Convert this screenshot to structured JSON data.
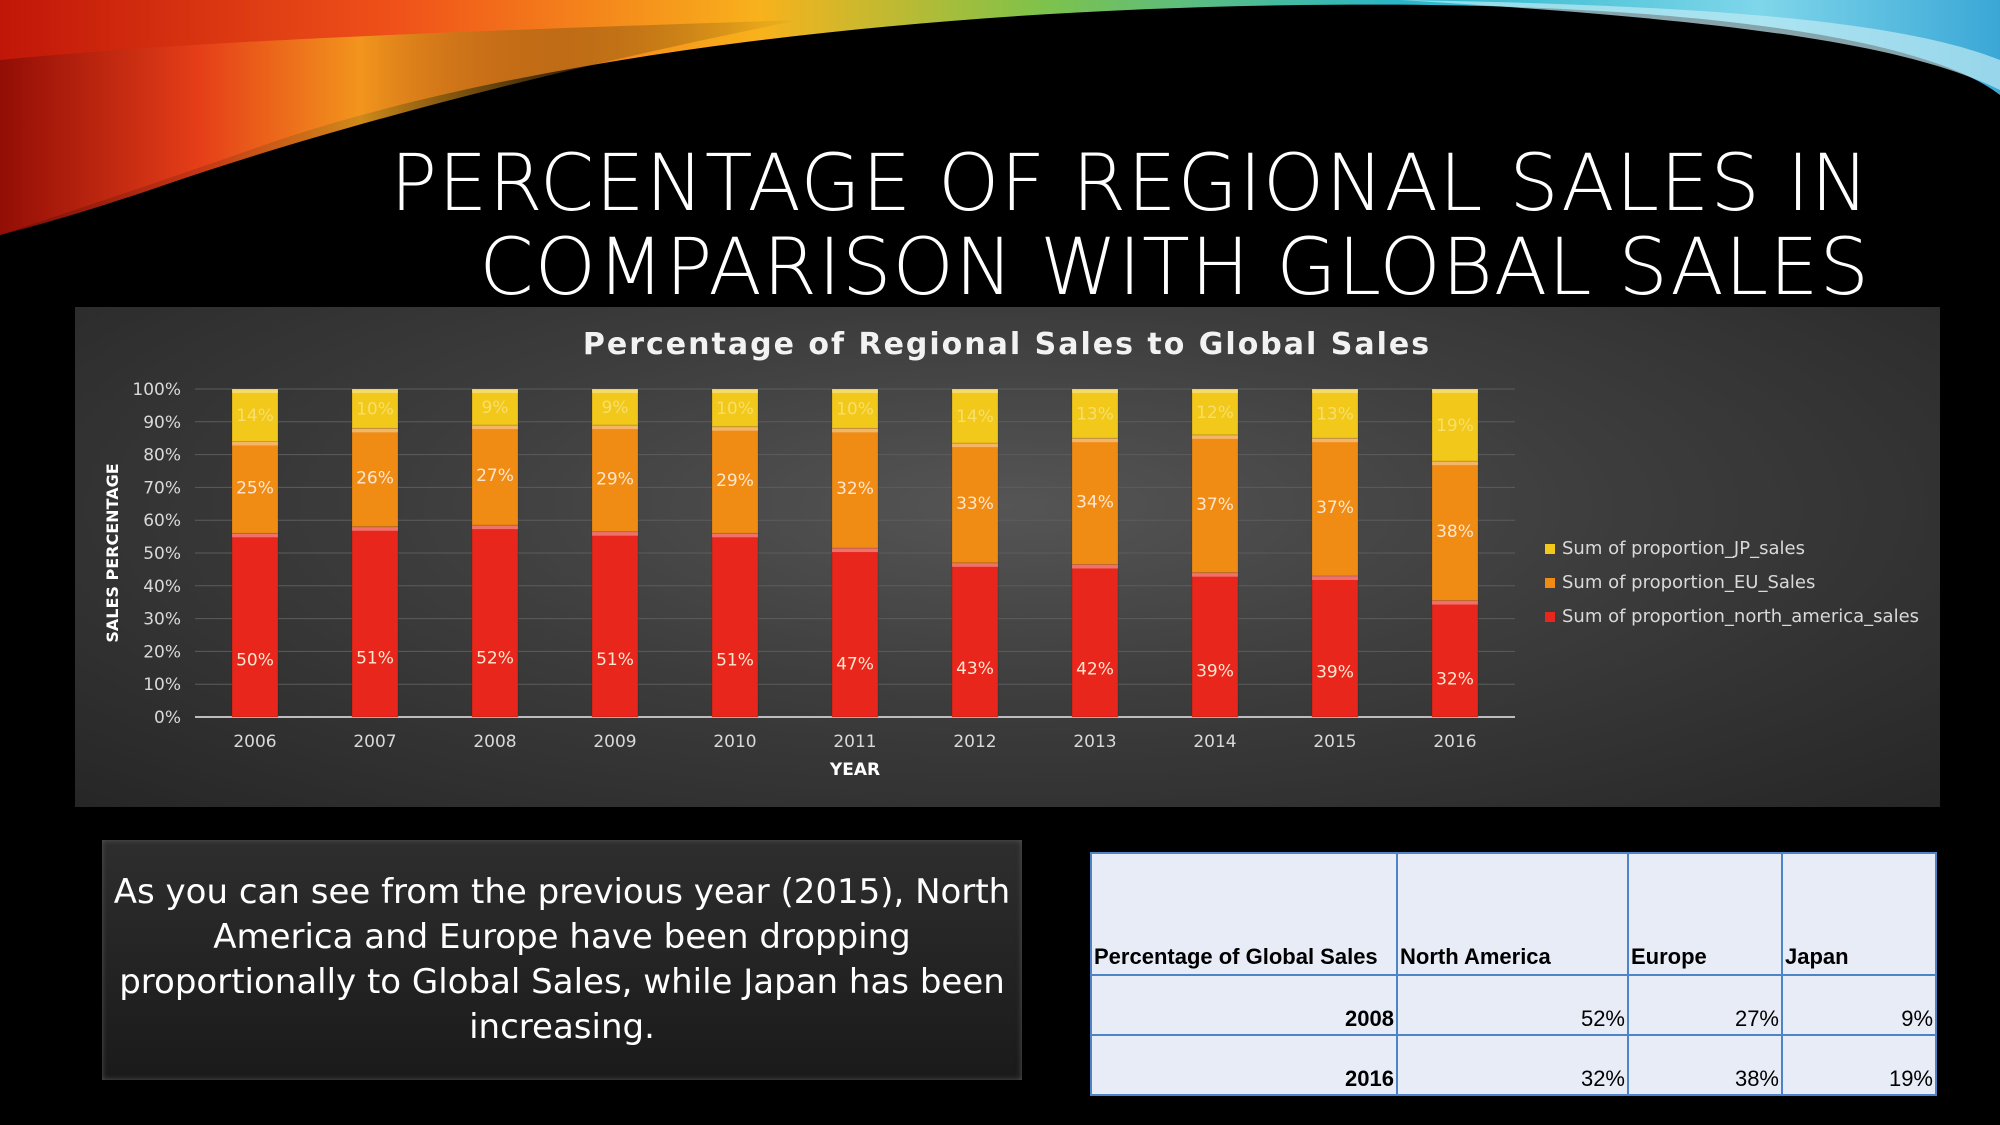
{
  "slide": {
    "title_line1": "PERCENTAGE OF REGIONAL SALES IN",
    "title_line2": "COMPARISON WITH GLOBAL SALES",
    "note": "As you can see from the previous year (2015), North America and Europe have been dropping proportionally to Global Sales, while Japan has been increasing."
  },
  "chart_data": {
    "type": "bar",
    "stacked": true,
    "title": "Percentage of Regional Sales to Global Sales",
    "xlabel": "YEAR",
    "ylabel": "SALES PERCENTAGE",
    "ylim": [
      0,
      100
    ],
    "yticks": [
      "0%",
      "10%",
      "20%",
      "30%",
      "40%",
      "50%",
      "60%",
      "70%",
      "80%",
      "90%",
      "100%"
    ],
    "grid": true,
    "legend_position": "right",
    "categories": [
      "2006",
      "2007",
      "2008",
      "2009",
      "2010",
      "2011",
      "2012",
      "2013",
      "2014",
      "2015",
      "2016"
    ],
    "series": [
      {
        "name": "Sum of proportion_north_america_sales",
        "color": "#e8261b",
        "values": [
          56,
          58,
          58.5,
          56.5,
          56,
          51.5,
          47,
          46.5,
          44,
          43,
          35.5
        ],
        "labels": [
          "50%",
          "51%",
          "52%",
          "51%",
          "51%",
          "47%",
          "43%",
          "42%",
          "39%",
          "39%",
          "32%"
        ]
      },
      {
        "name": "Sum of proportion_EU_Sales",
        "color": "#f08c14",
        "values": [
          28,
          30,
          30.5,
          32.5,
          32.5,
          36.5,
          36.5,
          38.5,
          42,
          42,
          42.5
        ],
        "labels": [
          "25%",
          "26%",
          "27%",
          "29%",
          "29%",
          "32%",
          "33%",
          "34%",
          "37%",
          "37%",
          "38%"
        ]
      },
      {
        "name": "Sum of proportion_JP_sales",
        "color": "#f2c81a",
        "values": [
          16,
          12,
          11,
          11,
          11.5,
          12,
          16.5,
          15,
          14,
          15,
          22
        ],
        "labels": [
          "14%",
          "10%",
          "9%",
          "9%",
          "10%",
          "10%",
          "14%",
          "13%",
          "12%",
          "13%",
          "19%"
        ]
      }
    ]
  },
  "table": {
    "header": [
      "Percentage of Global Sales",
      "North America",
      "Europe",
      "Japan"
    ],
    "rows": [
      [
        "2008",
        "52%",
        "27%",
        "9%"
      ],
      [
        "2016",
        "32%",
        "38%",
        "19%"
      ]
    ]
  }
}
